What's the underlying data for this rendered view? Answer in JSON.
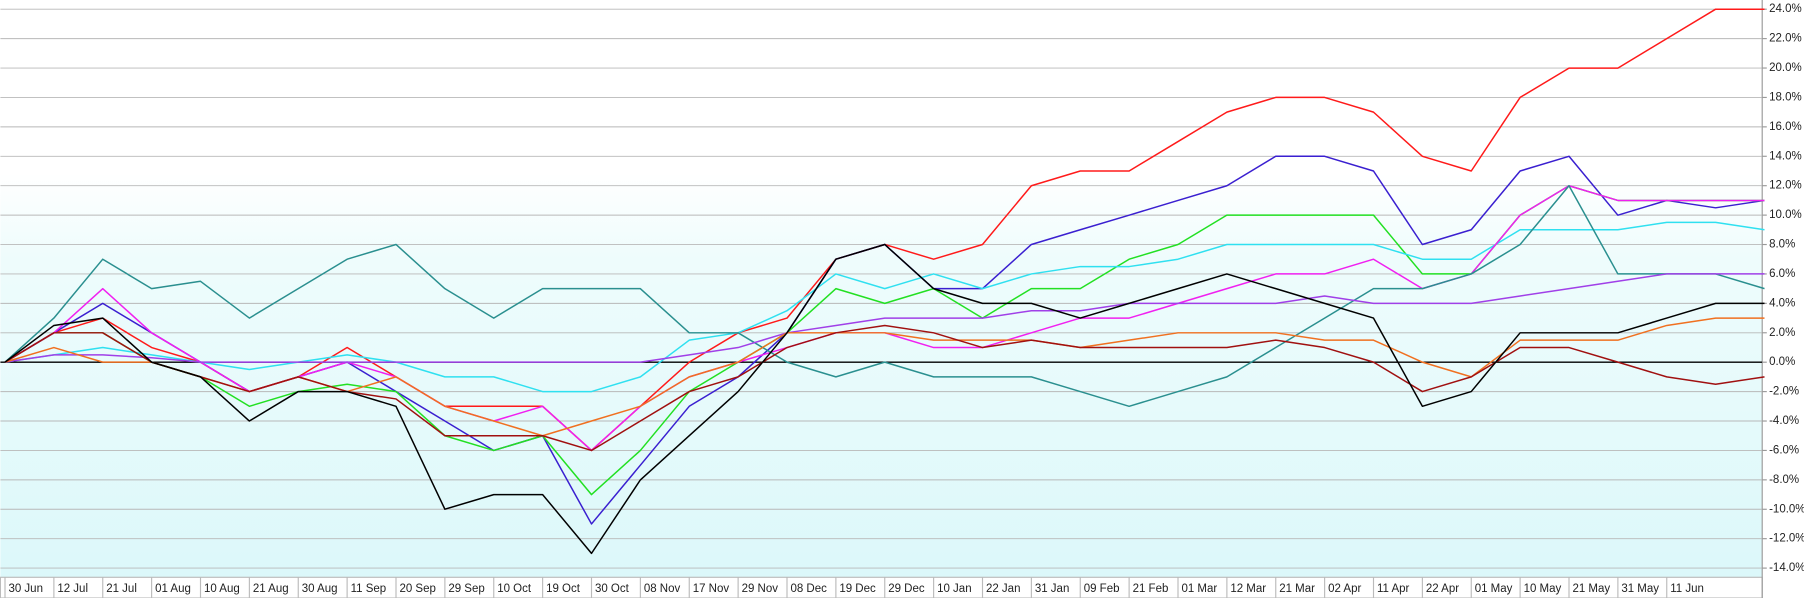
{
  "chart_data": {
    "type": "line",
    "categories": [
      "30 Jun",
      "12 Jul",
      "21 Jul",
      "01 Aug",
      "10 Aug",
      "21 Aug",
      "30 Aug",
      "11 Sep",
      "20 Sep",
      "29 Sep",
      "10 Oct",
      "19 Oct",
      "30 Oct",
      "08 Nov",
      "17 Nov",
      "29 Nov",
      "08 Dec",
      "19 Dec",
      "29 Dec",
      "10 Jan",
      "22 Jan",
      "31 Jan",
      "09 Feb",
      "21 Feb",
      "01 Mar",
      "12 Mar",
      "21 Mar",
      "02 Apr",
      "11 Apr",
      "22 Apr",
      "01 May",
      "10 May",
      "21 May",
      "31 May",
      "11 Jun",
      null,
      null
    ],
    "series": [
      {
        "color": "#ff1a1a",
        "values": [
          0,
          2,
          3,
          1,
          0,
          -2,
          -1,
          1,
          -1,
          -3,
          -3,
          -3,
          -6,
          -3,
          0,
          2,
          3,
          7,
          8,
          7,
          8,
          12,
          13,
          13,
          15,
          17,
          18,
          18,
          17,
          14,
          13,
          18,
          20,
          20,
          22,
          24,
          24
        ]
      },
      {
        "color": "#3a1fd0",
        "values": [
          0,
          2,
          4,
          2,
          0,
          -2,
          -1,
          0,
          -2,
          -4,
          -6,
          -5,
          -11,
          -7,
          -3,
          -1,
          2,
          7,
          8,
          5,
          5,
          8,
          9,
          10,
          11,
          12,
          14,
          14,
          13,
          8,
          9,
          13,
          14,
          10,
          11,
          10.5,
          11
        ]
      },
      {
        "color": "#22e022",
        "values": [
          0,
          2,
          2,
          0,
          -1,
          -3,
          -2,
          -1.5,
          -2,
          -5,
          -6,
          -5,
          -9,
          -6,
          -2,
          0,
          2,
          5,
          4,
          5,
          3,
          5,
          5,
          7,
          8,
          10,
          10,
          10,
          10,
          6,
          6,
          10,
          12,
          11,
          11,
          11,
          11
        ]
      },
      {
        "color": "#2fe0f0",
        "values": [
          0,
          0.5,
          1,
          0.5,
          0,
          -0.5,
          0,
          0.5,
          0,
          -1,
          -1,
          -2,
          -2,
          -1,
          1.5,
          2,
          3.5,
          6,
          5,
          6,
          5,
          6,
          6.5,
          6.5,
          7,
          8,
          8,
          8,
          8,
          7,
          7,
          9,
          9,
          9,
          9.5,
          9.5,
          9
        ]
      },
      {
        "color": "#f020f0",
        "values": [
          0,
          2,
          5,
          2,
          0,
          -2,
          -1,
          0,
          -1,
          -3,
          -4,
          -3,
          -6,
          -3,
          -1,
          0,
          1,
          2,
          2,
          1,
          1,
          2,
          3,
          3,
          4,
          5,
          6,
          6,
          7,
          5,
          6,
          10,
          12,
          11,
          11,
          11,
          11
        ]
      },
      {
        "color": "#2a8f8f",
        "values": [
          0,
          3,
          7,
          5,
          5.5,
          3,
          5,
          7,
          8,
          5,
          3,
          5,
          5,
          5,
          2,
          2,
          0,
          -1,
          0,
          -1,
          -1,
          -1,
          -2,
          -3,
          -2,
          -1,
          1,
          3,
          5,
          5,
          6,
          8,
          12,
          6,
          6,
          6,
          5
        ]
      },
      {
        "color": "#a040e8",
        "values": [
          0,
          0.5,
          0.5,
          0.3,
          0,
          0,
          0,
          0,
          0,
          0,
          0,
          0,
          0,
          0,
          0.5,
          1,
          2,
          2.5,
          3,
          3,
          3,
          3.5,
          3.5,
          4,
          4,
          4,
          4,
          4.5,
          4,
          4,
          4,
          4.5,
          5,
          5.5,
          6,
          6,
          6
        ]
      },
      {
        "color": "#f07020",
        "values": [
          0,
          1,
          0,
          0,
          -1,
          -2,
          -1,
          -2,
          -1,
          -3,
          -4,
          -5,
          -4,
          -3,
          -1,
          0,
          2,
          2,
          2,
          1.5,
          1.5,
          1.5,
          1,
          1.5,
          2,
          2,
          2,
          1.5,
          1.5,
          0,
          -1,
          1.5,
          1.5,
          1.5,
          2.5,
          3,
          3
        ]
      },
      {
        "color": "#a01010",
        "values": [
          0,
          2,
          2,
          0,
          -1,
          -2,
          -1,
          -2,
          -2.5,
          -5,
          -5,
          -5,
          -6,
          -4,
          -2,
          -1,
          1,
          2,
          2.5,
          2,
          1,
          1.5,
          1,
          1,
          1,
          1,
          1.5,
          1,
          0,
          -2,
          -1,
          1,
          1,
          0,
          -1,
          -1.5,
          -1
        ]
      },
      {
        "color": "#000000",
        "values": [
          0,
          2.5,
          3,
          0,
          -1,
          -4,
          -2,
          -2,
          -3,
          -10,
          -9,
          -9,
          -13,
          -8,
          -5,
          -2,
          2,
          7,
          8,
          5,
          4,
          4,
          3,
          4,
          5,
          6,
          5,
          4,
          3,
          -3,
          -2,
          2,
          2,
          2,
          3,
          4,
          4
        ]
      }
    ],
    "ylim": [
      -14,
      24
    ],
    "yticks": [
      {
        "value": 24,
        "label": "24.0%"
      },
      {
        "value": 22,
        "label": "22.0%"
      },
      {
        "value": 20,
        "label": "20.0%"
      },
      {
        "value": 18,
        "label": "18.0%"
      },
      {
        "value": 16,
        "label": "16.0%"
      },
      {
        "value": 14,
        "label": "14.0%"
      },
      {
        "value": 12,
        "label": "12.0%"
      },
      {
        "value": 10,
        "label": "10.0%"
      },
      {
        "value": 8,
        "label": "8.0%"
      },
      {
        "value": 6,
        "label": "6.0%"
      },
      {
        "value": 4,
        "label": "4.0%"
      },
      {
        "value": 2,
        "label": "2.0%"
      },
      {
        "value": 0,
        "label": "0.0%"
      },
      {
        "value": -2,
        "label": "-2.0%"
      },
      {
        "value": -4,
        "label": "-4.0%"
      },
      {
        "value": -6,
        "label": "-6.0%"
      },
      {
        "value": -8,
        "label": "-8.0%"
      },
      {
        "value": -10,
        "label": "-10.0%"
      },
      {
        "value": -12,
        "label": "-12.0%"
      },
      {
        "value": -14,
        "label": "-14.0%"
      }
    ],
    "grid": true
  }
}
